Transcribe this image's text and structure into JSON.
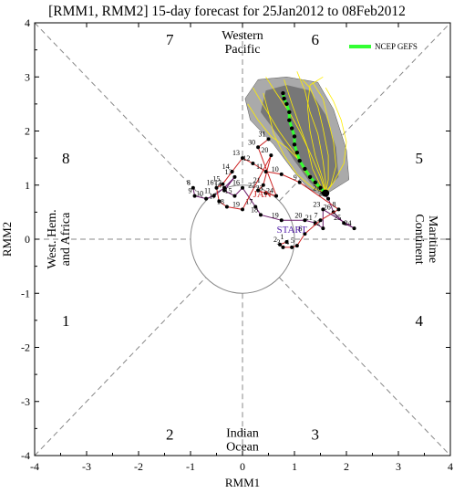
{
  "chart_data": {
    "type": "line",
    "title": "[RMM1, RMM2] 15-day forecast for 25Jan2012 to 08Feb2012",
    "xlabel": "RMM1",
    "ylabel": "RMM2",
    "xlim": [
      -4,
      4
    ],
    "ylim": [
      -4,
      4
    ],
    "xticks": [
      -4,
      -3,
      -2,
      -1,
      0,
      1,
      2,
      3,
      4
    ],
    "yticks": [
      -4,
      -3,
      -2,
      -1,
      0,
      1,
      2,
      3,
      4
    ],
    "phase_labels": [
      {
        "text": "1",
        "x": -3.4,
        "y": -1.5
      },
      {
        "text": "2",
        "x": -1.4,
        "y": -3.6
      },
      {
        "text": "3",
        "x": 1.4,
        "y": -3.6
      },
      {
        "text": "4",
        "x": 3.4,
        "y": -1.5
      },
      {
        "text": "5",
        "x": 3.4,
        "y": 1.5
      },
      {
        "text": "6",
        "x": 1.4,
        "y": 3.7
      },
      {
        "text": "7",
        "x": -1.4,
        "y": 3.7
      },
      {
        "text": "8",
        "x": -3.4,
        "y": 1.5
      }
    ],
    "region_labels": [
      {
        "lines": [
          "Western",
          "Pacific"
        ],
        "x": 0,
        "y": 3.65,
        "rotate": 0
      },
      {
        "lines": [
          "Indian",
          "Ocean"
        ],
        "x": 0,
        "y": -3.7,
        "rotate": 0
      },
      {
        "lines": [
          "West. Hem.",
          "and Africa"
        ],
        "x": -3.55,
        "y": 0,
        "rotate": -90
      },
      {
        "lines": [
          "Maritime",
          "Continent"
        ],
        "x": 3.55,
        "y": 0,
        "rotate": 90
      }
    ],
    "legend": {
      "label": "NCEP GEFS",
      "color": "#33ff33",
      "position": "top-right"
    },
    "annotations": [
      {
        "text": "JAN",
        "x": 0.38,
        "y": 0.78,
        "color": "#cc2222"
      },
      {
        "text": "START",
        "x": 0.95,
        "y": 0.12,
        "color": "#5522aa"
      }
    ],
    "observed": {
      "december": {
        "color": "#6a1a6a",
        "points": [
          {
            "x": -0.95,
            "y": 0.95,
            "label": "8"
          },
          {
            "x": -0.92,
            "y": 0.8,
            "label": "9"
          },
          {
            "x": -0.7,
            "y": 0.75,
            "label": "10"
          },
          {
            "x": -0.55,
            "y": 0.8,
            "label": "11"
          },
          {
            "x": -0.35,
            "y": 0.95,
            "label": "12"
          },
          {
            "x": -0.15,
            "y": 1.15,
            "label": "13"
          },
          {
            "x": -0.35,
            "y": 0.9,
            "label": "14"
          },
          {
            "x": -0.15,
            "y": 0.8,
            "label": "15"
          },
          {
            "x": 0.0,
            "y": 0.95,
            "label": "16"
          },
          {
            "x": 0.25,
            "y": 0.6,
            "label": "17"
          },
          {
            "x": 0.35,
            "y": 0.45,
            "label": "18"
          },
          {
            "x": 0.75,
            "y": 0.35,
            "label": "19"
          },
          {
            "x": 1.2,
            "y": 0.35,
            "label": "20"
          },
          {
            "x": 1.4,
            "y": 0.3,
            "label": "21"
          },
          {
            "x": 1.55,
            "y": 0.2,
            "label": "22"
          },
          {
            "x": 1.55,
            "y": 0.55,
            "label": "23"
          },
          {
            "x": 2.15,
            "y": 0.2,
            "label": "24"
          },
          {
            "x": 1.95,
            "y": 0.3,
            "label": "25"
          },
          {
            "x": 1.75,
            "y": 0.5,
            "label": "26"
          },
          {
            "x": 1.65,
            "y": 0.75,
            "label": "27"
          },
          {
            "x": 1.55,
            "y": 0.85,
            "label": "28"
          }
        ]
      },
      "january": {
        "color": "#cc2222",
        "points": [
          {
            "x": 0.85,
            "y": -0.05,
            "label": "1"
          },
          {
            "x": 0.72,
            "y": -0.1,
            "label": "2"
          },
          {
            "x": 0.78,
            "y": -0.15,
            "label": "3"
          },
          {
            "x": 0.95,
            "y": -0.15,
            "label": "4"
          },
          {
            "x": 1.05,
            "y": -0.12,
            "label": "5"
          },
          {
            "x": 1.2,
            "y": 0.1,
            "label": "6"
          },
          {
            "x": 1.5,
            "y": 0.35,
            "label": "7"
          },
          {
            "x": 1.85,
            "y": 0.55,
            "label": "8"
          },
          {
            "x": 1.1,
            "y": 1.05,
            "label": "9"
          },
          {
            "x": 0.75,
            "y": 1.2,
            "label": "10"
          },
          {
            "x": 0.45,
            "y": 1.25,
            "label": "11"
          },
          {
            "x": 0.2,
            "y": 1.4,
            "label": "12"
          },
          {
            "x": 0.0,
            "y": 1.5,
            "label": "13"
          },
          {
            "x": -0.2,
            "y": 1.25,
            "label": "14"
          },
          {
            "x": -0.38,
            "y": 1.02,
            "label": "15"
          },
          {
            "x": -0.5,
            "y": 0.95,
            "label": "16"
          },
          {
            "x": -0.45,
            "y": 0.7,
            "label": "17"
          },
          {
            "x": -0.3,
            "y": 0.6,
            "label": "18"
          },
          {
            "x": 0.0,
            "y": 0.55,
            "label": "19"
          },
          {
            "x": 0.55,
            "y": 1.55,
            "label": "20"
          },
          {
            "x": 0.4,
            "y": 1.0,
            "label": "21"
          },
          {
            "x": 0.3,
            "y": 0.9,
            "label": "22"
          },
          {
            "x": 0.45,
            "y": 0.85,
            "label": "23"
          },
          {
            "x": 0.65,
            "y": 0.8,
            "label": "24"
          },
          {
            "x": 0.3,
            "y": 1.7,
            "label": "30"
          },
          {
            "x": 0.5,
            "y": 1.85,
            "label": "31"
          }
        ]
      }
    },
    "forecast_mean": {
      "color": "#33ff33",
      "points": [
        {
          "x": 1.6,
          "y": 0.85
        },
        {
          "x": 1.5,
          "y": 0.95
        },
        {
          "x": 1.4,
          "y": 1.05
        },
        {
          "x": 1.3,
          "y": 1.15
        },
        {
          "x": 1.2,
          "y": 1.3
        },
        {
          "x": 1.1,
          "y": 1.45
        },
        {
          "x": 1.05,
          "y": 1.6
        },
        {
          "x": 1.0,
          "y": 1.75
        },
        {
          "x": 1.0,
          "y": 1.9
        },
        {
          "x": 0.95,
          "y": 2.05
        },
        {
          "x": 0.9,
          "y": 2.2
        },
        {
          "x": 0.9,
          "y": 2.35
        },
        {
          "x": 0.85,
          "y": 2.5
        },
        {
          "x": 0.8,
          "y": 2.6
        },
        {
          "x": 0.78,
          "y": 2.7
        }
      ]
    },
    "forecast_spread": {
      "outer_color": "#aaaaaa",
      "inner_color": "#777777",
      "outer_polygon": [
        {
          "x": 1.55,
          "y": 0.8
        },
        {
          "x": 2.05,
          "y": 1.1
        },
        {
          "x": 2.0,
          "y": 1.65
        },
        {
          "x": 1.75,
          "y": 2.4
        },
        {
          "x": 1.45,
          "y": 2.9
        },
        {
          "x": 0.85,
          "y": 3.0
        },
        {
          "x": 0.3,
          "y": 2.95
        },
        {
          "x": 0.05,
          "y": 2.6
        },
        {
          "x": 0.15,
          "y": 2.2
        },
        {
          "x": 0.6,
          "y": 1.75
        },
        {
          "x": 0.95,
          "y": 1.3
        },
        {
          "x": 1.25,
          "y": 0.95
        }
      ],
      "inner_polygon": [
        {
          "x": 1.55,
          "y": 0.85
        },
        {
          "x": 1.85,
          "y": 1.15
        },
        {
          "x": 1.8,
          "y": 1.7
        },
        {
          "x": 1.6,
          "y": 2.3
        },
        {
          "x": 1.3,
          "y": 2.75
        },
        {
          "x": 0.85,
          "y": 2.85
        },
        {
          "x": 0.45,
          "y": 2.75
        },
        {
          "x": 0.35,
          "y": 2.35
        },
        {
          "x": 0.7,
          "y": 1.9
        },
        {
          "x": 1.0,
          "y": 1.45
        },
        {
          "x": 1.3,
          "y": 1.05
        }
      ]
    },
    "ensemble_members": {
      "color": "#ffee00",
      "start": {
        "x": 1.6,
        "y": 0.85
      },
      "members": [
        [
          {
            "x": 1.5,
            "y": 1.0
          },
          {
            "x": 1.35,
            "y": 1.3
          },
          {
            "x": 1.25,
            "y": 1.7
          },
          {
            "x": 1.1,
            "y": 2.1
          },
          {
            "x": 0.95,
            "y": 2.5
          },
          {
            "x": 0.8,
            "y": 2.95
          }
        ],
        [
          {
            "x": 1.45,
            "y": 0.95
          },
          {
            "x": 1.2,
            "y": 1.25
          },
          {
            "x": 1.0,
            "y": 1.6
          },
          {
            "x": 0.7,
            "y": 2.0
          },
          {
            "x": 0.45,
            "y": 2.4
          },
          {
            "x": 0.2,
            "y": 2.8
          }
        ],
        [
          {
            "x": 1.6,
            "y": 1.05
          },
          {
            "x": 1.55,
            "y": 1.45
          },
          {
            "x": 1.45,
            "y": 1.95
          },
          {
            "x": 1.3,
            "y": 2.35
          },
          {
            "x": 1.2,
            "y": 2.75
          },
          {
            "x": 1.05,
            "y": 3.1
          }
        ],
        [
          {
            "x": 1.7,
            "y": 1.0
          },
          {
            "x": 1.8,
            "y": 1.35
          },
          {
            "x": 1.75,
            "y": 1.8
          },
          {
            "x": 1.65,
            "y": 2.2
          },
          {
            "x": 1.55,
            "y": 2.6
          },
          {
            "x": 1.35,
            "y": 2.9
          }
        ],
        [
          {
            "x": 1.4,
            "y": 1.05
          },
          {
            "x": 1.15,
            "y": 1.4
          },
          {
            "x": 0.85,
            "y": 1.7
          },
          {
            "x": 0.55,
            "y": 1.9
          },
          {
            "x": 0.3,
            "y": 2.2
          },
          {
            "x": 0.1,
            "y": 2.5
          }
        ],
        [
          {
            "x": 1.55,
            "y": 1.1
          },
          {
            "x": 1.4,
            "y": 1.55
          },
          {
            "x": 1.3,
            "y": 2.0
          },
          {
            "x": 1.25,
            "y": 2.45
          },
          {
            "x": 1.3,
            "y": 2.85
          },
          {
            "x": 1.55,
            "y": 3.0
          }
        ],
        [
          {
            "x": 1.75,
            "y": 1.05
          },
          {
            "x": 1.95,
            "y": 1.4
          },
          {
            "x": 2.0,
            "y": 1.8
          },
          {
            "x": 1.9,
            "y": 2.2
          },
          {
            "x": 1.75,
            "y": 2.55
          },
          {
            "x": 1.6,
            "y": 2.8
          }
        ],
        [
          {
            "x": 1.35,
            "y": 0.95
          },
          {
            "x": 1.05,
            "y": 1.2
          },
          {
            "x": 0.8,
            "y": 1.55
          },
          {
            "x": 0.6,
            "y": 1.95
          },
          {
            "x": 0.5,
            "y": 2.35
          },
          {
            "x": 0.4,
            "y": 2.7
          }
        ],
        [
          {
            "x": 1.5,
            "y": 1.15
          },
          {
            "x": 1.3,
            "y": 1.6
          },
          {
            "x": 1.1,
            "y": 2.0
          },
          {
            "x": 0.9,
            "y": 2.35
          },
          {
            "x": 0.65,
            "y": 2.7
          },
          {
            "x": 0.45,
            "y": 3.0
          }
        ],
        [
          {
            "x": 1.65,
            "y": 1.1
          },
          {
            "x": 1.65,
            "y": 1.55
          },
          {
            "x": 1.55,
            "y": 2.05
          },
          {
            "x": 1.45,
            "y": 2.45
          },
          {
            "x": 1.3,
            "y": 2.8
          },
          {
            "x": 1.15,
            "y": 2.95
          }
        ]
      ]
    }
  }
}
